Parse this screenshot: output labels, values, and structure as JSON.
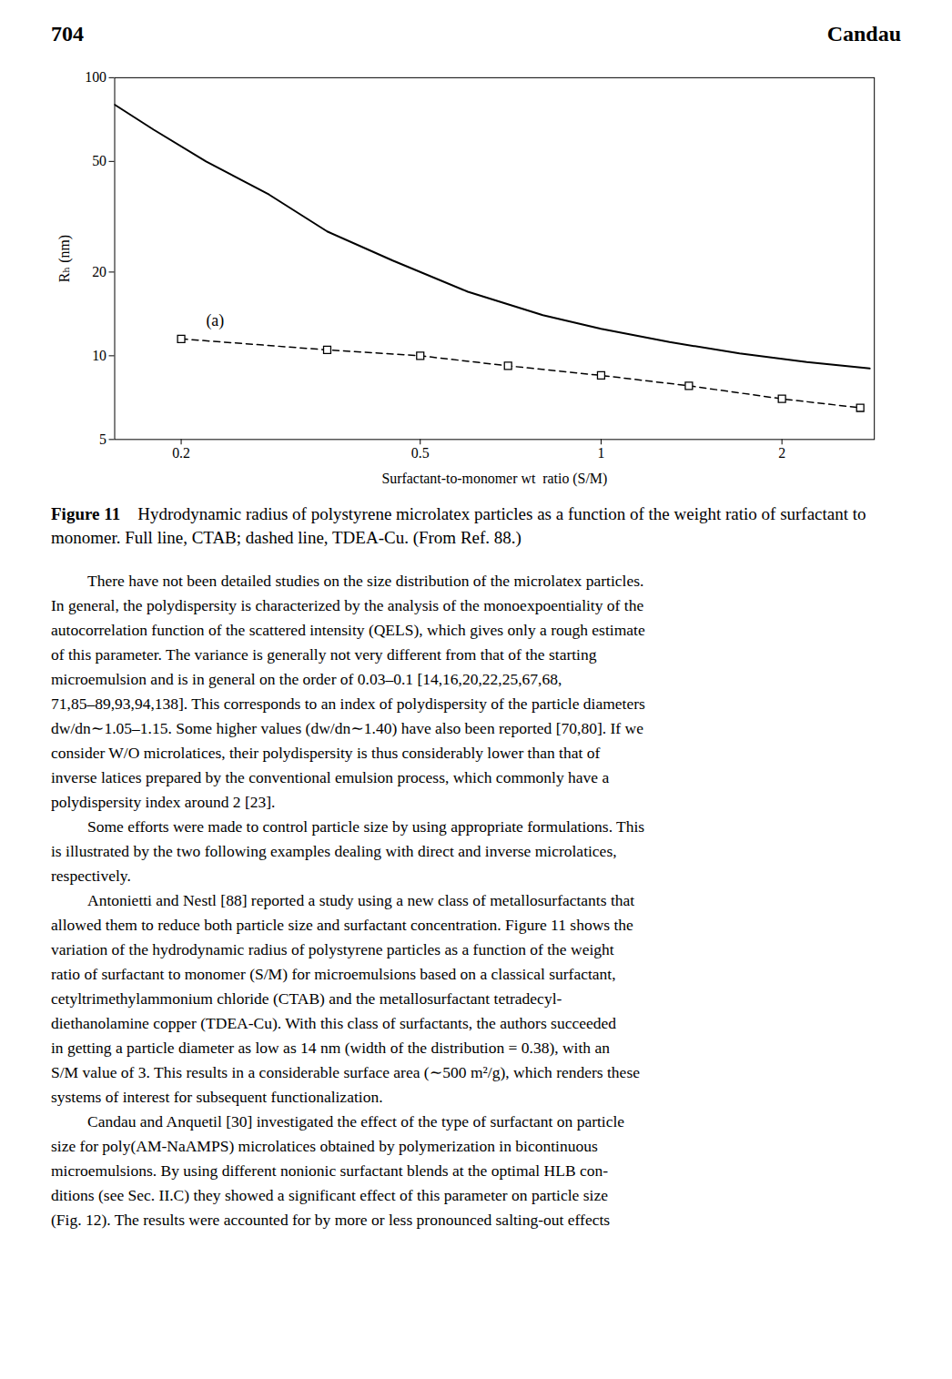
{
  "chart_data": {
    "type": "line",
    "header": {
      "left": "704",
      "right": "Candau"
    },
    "x_label": "Surfactant-to-monomer wt  ratio (S/M)",
    "y_label": "Rₕ (nm)",
    "log": true,
    "grid": false,
    "series": [
      {
        "line_style": "solid",
        "color": "#000000",
        "x": [
          0.155,
          0.18,
          0.22,
          0.28,
          0.35,
          0.45,
          0.6,
          0.8,
          1.0,
          1.3,
          1.7,
          2.2,
          2.8
        ],
        "values": [
          80,
          65,
          50,
          38,
          28,
          22,
          17,
          14,
          12.5,
          11.2,
          10.2,
          9.5,
          9.0
        ]
      },
      {
        "line_style": "dashed",
        "marker": "square",
        "color": "#000000",
        "x": [
          0.2,
          0.35,
          0.5,
          0.7,
          1.0,
          1.4,
          2.0,
          2.7
        ],
        "values": [
          11.5,
          10.5,
          10.0,
          9.2,
          8.5,
          7.8,
          7.0,
          6.5
        ]
      }
    ],
    "xlim": [
      0.155,
      2.85
    ],
    "ylim": [
      5,
      100
    ],
    "xticks": [
      0.2,
      0.5,
      1,
      2
    ],
    "yticks": [
      5,
      10,
      20,
      50,
      100
    ],
    "annotations": [
      {
        "text": "(a)",
        "x": 0.22,
        "y": 12.8
      }
    ],
    "caption": {
      "label": "Figure 11",
      "text": "Hydrodynamic radius of polystyrene microlatex particles as a function of the weight ratio of surfactant to monomer. Full line, CTAB; dashed line, TDEA-Cu. (From Ref. 88.)"
    },
    "body_text": [
      [
        "There have not been detailed studies on the size distribution of the microlatex particles.",
        "In general, the polydispersity is characterized by the analysis of the monoexpoentiality of the",
        "autocorrelation function of the scattered intensity (QELS), which gives only a rough estimate",
        "of this parameter. The variance is generally not very different from that of the starting",
        "microemulsion and is in general on the order of 0.03–0.1  [14,16,20,22,25,67,68,",
        "71,85–89,93,94,138]. This corresponds to an index of polydispersity of the particle diameters",
        "dw/dn∼1.05–1.15. Some higher values (dw/dn∼1.40) have also been reported [70,80]. If we",
        "consider W/O microlatices, their polydispersity is thus considerably lower than that of",
        "inverse latices prepared by the conventional emulsion process, which commonly have a",
        "polydispersity index around 2 [23]."
      ],
      [
        "Some efforts were made to control particle size by using appropriate formulations. This",
        "is illustrated by the two following examples dealing with direct and inverse microlatices,",
        "respectively."
      ],
      [
        "Antonietti and Nestl [88] reported a study using a new class of metallosurfactants that",
        "allowed them to reduce both particle size and surfactant concentration. Figure 11 shows the",
        "variation of the hydrodynamic radius of polystyrene particles as a function of the weight",
        "ratio of surfactant to monomer (S/M) for microemulsions based on a classical surfactant,",
        "cetyltrimethylammonium chloride (CTAB) and the metallosurfactant  tetradecyl-",
        "diethanolamine copper (TDEA-Cu). With this class of surfactants, the authors succeeded",
        "in getting a particle diameter as low as 14 nm (width of the distribution = 0.38), with an",
        "S/M value of 3. This results in a considerable surface area (∼500 m²/g), which renders these",
        "systems of interest for subsequent functionalization."
      ],
      [
        "Candau and Anquetil [30] investigated the effect of the type of surfactant on particle",
        "size for poly(AM-NaAMPS) microlatices obtained by polymerization in bicontinuous",
        "microemulsions. By using different nonionic surfactant blends at the optimal HLB con-",
        "ditions (see Sec. II.C) they showed a significant effect of this parameter on particle size",
        "(Fig. 12). The results were accounted for by more or less pronounced salting-out effects"
      ]
    ]
  }
}
